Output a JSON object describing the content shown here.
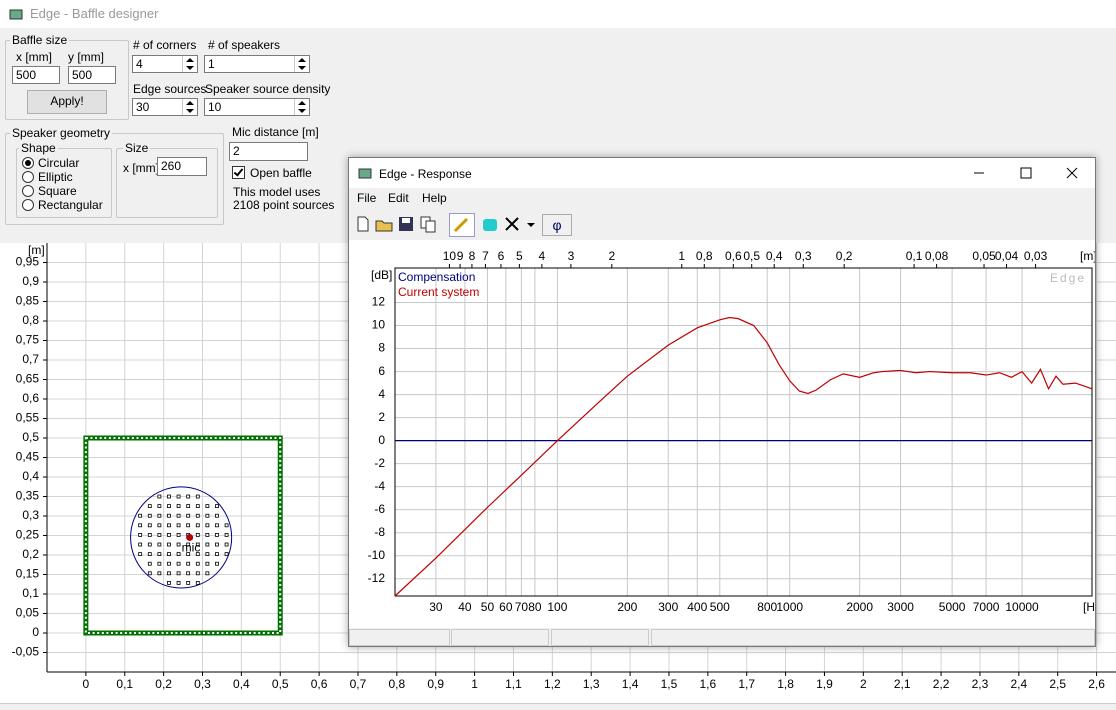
{
  "main_window": {
    "title": "Edge - Baffle designer",
    "baffle_size": {
      "label": "Baffle size",
      "x_label": "x [mm]",
      "y_label": "y [mm]",
      "x": 500,
      "y": 500,
      "apply": "Apply!"
    },
    "corners": {
      "label": "# of corners",
      "value": 4
    },
    "speakers": {
      "label": "# of speakers",
      "value": 1
    },
    "edge_sources": {
      "label": "Edge sources",
      "value": 30
    },
    "source_density": {
      "label": "Speaker source density",
      "value": 10
    },
    "speaker_geometry": {
      "label": "Speaker geometry",
      "shape_label": "Shape",
      "shapes": [
        "Circular",
        "Elliptic",
        "Square",
        "Rectangular"
      ],
      "selected": 0,
      "size_label": "Size",
      "size_x_label": "x [mm]",
      "size_x": 260
    },
    "mic_distance": {
      "label": "Mic distance [m]",
      "value": 2
    },
    "open_baffle": {
      "label": "Open baffle",
      "checked": true
    },
    "info": [
      "This model uses",
      "2108 point sources"
    ]
  },
  "baffle_plot": {
    "unit": "[m]",
    "xlim": [
      -0.1,
      2.65
    ],
    "ylim": [
      -0.1,
      1.0
    ],
    "grid": true,
    "baffle_color": "#007000",
    "speaker_center": [
      0.245,
      0.245
    ],
    "mic": [
      0.267,
      0.245
    ],
    "mic_label": "mic",
    "xticks": [
      0,
      {
        "value": 0.1,
        "label": "0,1"
      },
      {
        "value": 0.2,
        "label": "0,2"
      },
      {
        "value": 0.3,
        "label": "0,3"
      },
      {
        "value": 0.4,
        "label": "0,4"
      },
      {
        "value": 0.5,
        "label": "0,5"
      },
      {
        "value": 0.6,
        "label": "0,6"
      },
      {
        "value": 0.7,
        "label": "0,7"
      },
      {
        "value": 0.8,
        "label": "0,8"
      },
      {
        "value": 0.9,
        "label": "0,9"
      },
      1,
      {
        "value": 1.1,
        "label": "1,1"
      },
      {
        "value": 1.2,
        "label": "1,2"
      },
      {
        "value": 1.3,
        "label": "1,3"
      },
      {
        "value": 1.4,
        "label": "1,4"
      },
      {
        "value": 1.5,
        "label": "1,5"
      },
      {
        "value": 1.6,
        "label": "1,6"
      },
      {
        "value": 1.7,
        "label": "1,7"
      },
      {
        "value": 1.8,
        "label": "1,8"
      },
      {
        "value": 1.9,
        "label": "1,9"
      },
      2,
      {
        "value": 2.1,
        "label": "2,1"
      },
      {
        "value": 2.2,
        "label": "2,2"
      },
      {
        "value": 2.3,
        "label": "2,3"
      },
      {
        "value": 2.4,
        "label": "2,4"
      },
      {
        "value": 2.5,
        "label": "2,5"
      },
      {
        "value": 2.6,
        "label": "2,6"
      }
    ],
    "yticks": [
      {
        "value": 0.95,
        "label": "0,95"
      },
      {
        "value": 0.9,
        "label": "0,9"
      },
      {
        "value": 0.85,
        "label": "0,85"
      },
      {
        "value": 0.8,
        "label": "0,8"
      },
      {
        "value": 0.75,
        "label": "0,75"
      },
      {
        "value": 0.7,
        "label": "0,7"
      },
      {
        "value": 0.65,
        "label": "0,65"
      },
      {
        "value": 0.6,
        "label": "0,6"
      },
      {
        "value": 0.55,
        "label": "0,55"
      },
      {
        "value": 0.5,
        "label": "0,5"
      },
      {
        "value": 0.45,
        "label": "0,45"
      },
      {
        "value": 0.4,
        "label": "0,4"
      },
      {
        "value": 0.35,
        "label": "0,35"
      },
      {
        "value": 0.3,
        "label": "0,3"
      },
      {
        "value": 0.25,
        "label": "0,25"
      },
      {
        "value": 0.2,
        "label": "0,2"
      },
      {
        "value": 0.15,
        "label": "0,15"
      },
      {
        "value": 0.1,
        "label": "0,1"
      },
      {
        "value": 0.05,
        "label": "0,05"
      },
      0,
      {
        "value": -0.05,
        "label": "-0,05"
      }
    ]
  },
  "response_window": {
    "title": "Edge - Response",
    "menu": [
      "File",
      "Edit",
      "Help"
    ],
    "phase_button": "φ"
  },
  "response_chart": {
    "type": "line",
    "y_label": "[dB]",
    "x_label": "[Hz]",
    "top_axis_label": "[m]",
    "watermark": "Edge",
    "log_x": true,
    "grid": true,
    "xlim": [
      20,
      20000
    ],
    "ylim": [
      -13.5,
      15
    ],
    "xticks": [
      30,
      40,
      50,
      60,
      70,
      80,
      100,
      200,
      300,
      400,
      500,
      800,
      1000,
      2000,
      3000,
      5000,
      7000,
      10000
    ],
    "yticks": [
      -12,
      -10,
      -8,
      -6,
      -4,
      -2,
      0,
      2,
      4,
      6,
      8,
      10,
      12
    ],
    "top_ticks": [
      10,
      9,
      8,
      7,
      6,
      5,
      4,
      3,
      2,
      1,
      {
        "value": 0.8,
        "label": "0,8"
      },
      {
        "value": 0.6,
        "label": "0,6"
      },
      {
        "value": 0.5,
        "label": "0,5"
      },
      {
        "value": 0.4,
        "label": "0,4"
      },
      {
        "value": 0.3,
        "label": "0,3"
      },
      {
        "value": 0.2,
        "label": "0,2"
      },
      {
        "value": 0.1,
        "label": "0,1"
      },
      {
        "value": 0.08,
        "label": "0,08"
      },
      {
        "value": 0.05,
        "label": "0,05"
      },
      {
        "value": 0.04,
        "label": "0,04"
      },
      {
        "value": 0.03,
        "label": "0,03"
      }
    ],
    "x": [
      20,
      30,
      50,
      70,
      100,
      150,
      200,
      300,
      400,
      500,
      550,
      600,
      700,
      800,
      900,
      1000,
      1100,
      1200,
      1300,
      1500,
      1700,
      2000,
      2300,
      2500,
      3000,
      3500,
      4000,
      5000,
      6000,
      7000,
      8000,
      9000,
      10000,
      11000,
      12000,
      13000,
      14000,
      15000,
      17000,
      20000
    ],
    "series": [
      {
        "name": "Compensation",
        "color": "#000080",
        "values": [
          0,
          0,
          0,
          0,
          0,
          0,
          0,
          0,
          0,
          0,
          0,
          0,
          0,
          0,
          0,
          0,
          0,
          0,
          0,
          0,
          0,
          0,
          0,
          0,
          0,
          0,
          0,
          0,
          0,
          0,
          0,
          0,
          0,
          0,
          0,
          0,
          0,
          0,
          0,
          0
        ]
      },
      {
        "name": "Current system",
        "color": "#c00000",
        "values": [
          -13.5,
          -10.2,
          -5.8,
          -3,
          0,
          3.3,
          5.6,
          8.3,
          9.8,
          10.5,
          10.7,
          10.6,
          10,
          8.5,
          6.6,
          5.2,
          4.3,
          4.1,
          4.4,
          5.3,
          5.8,
          5.5,
          5.9,
          6,
          6.1,
          5.9,
          6,
          5.9,
          5.9,
          5.7,
          5.9,
          5.5,
          6,
          5,
          6.2,
          4.5,
          5.6,
          4.9,
          5,
          4.5
        ]
      }
    ]
  }
}
